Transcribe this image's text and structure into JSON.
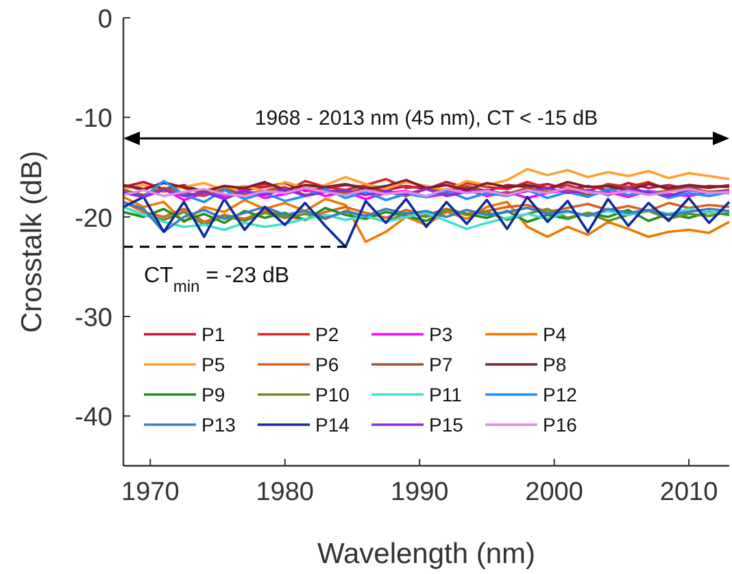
{
  "chart_data": {
    "type": "line",
    "xlabel": "Wavelength (nm)",
    "ylabel": "Crosstalk (dB)",
    "xlim": [
      1968,
      2013
    ],
    "ylim": [
      -45,
      0
    ],
    "xticks": [
      1970,
      1980,
      1990,
      2000,
      2010
    ],
    "yticks": [
      -40,
      -30,
      -20,
      -10,
      0
    ],
    "grid": false,
    "legend": "bottom left",
    "marker": "none",
    "line_style": "solid",
    "x": [
      1968,
      1969.5,
      1971,
      1972.5,
      1974,
      1975.5,
      1977,
      1978.5,
      1980,
      1981.5,
      1983,
      1984.5,
      1986,
      1987.5,
      1989,
      1990.5,
      1992,
      1993.5,
      1995,
      1996.5,
      1998,
      1999.5,
      2001,
      2002.5,
      2004,
      2005.5,
      2007,
      2008.5,
      2010,
      2011.5,
      2013
    ],
    "annotations": [
      "1968 - 2013 nm (45 nm), CT < -15 dB",
      {
        "text": "CT$_{min}$ = -23 dB",
        "x": 1985,
        "y": -23
      }
    ],
    "series": [
      {
        "name": "P1",
        "color": "#c0143c",
        "values": [
          -17,
          -16.5,
          -17.2,
          -16.8,
          -17.5,
          -16.9,
          -17.3,
          -17,
          -16.6,
          -17.4,
          -17.1,
          -16.8,
          -17,
          -17.3,
          -16.9,
          -17.2,
          -16.5,
          -17.1,
          -17.4,
          -16.8,
          -17,
          -16.7,
          -17.2,
          -16.9,
          -17.3,
          -16.6,
          -17.1,
          -16.8,
          -17.2,
          -16.9,
          -17
        ]
      },
      {
        "name": "P2",
        "color": "#d62728",
        "values": [
          -16.8,
          -17.3,
          -16.5,
          -17.1,
          -17.6,
          -16.9,
          -17.2,
          -16.7,
          -17.5,
          -16.4,
          -17,
          -17.3,
          -16.8,
          -16.2,
          -17.1,
          -16.9,
          -17.4,
          -16.6,
          -17,
          -17.2,
          -16.5,
          -17.1,
          -16.8,
          -17.4,
          -16.7,
          -17,
          -16.5,
          -17.3,
          -16.9,
          -17.1,
          -16.8
        ]
      },
      {
        "name": "P3",
        "color": "#ff00ff",
        "values": [
          -17.5,
          -18,
          -17.2,
          -18.3,
          -17.6,
          -17.9,
          -17.3,
          -18.1,
          -17.7,
          -17.2,
          -17.9,
          -17.5,
          -18.2,
          -17.6,
          -17.4,
          -18,
          -17.7,
          -17.3,
          -17.9,
          -17.5,
          -18.1,
          -17.6,
          -17.3,
          -17.8,
          -17.5,
          -18,
          -17.4,
          -17.7,
          -17.9,
          -17.5,
          -17.6
        ]
      },
      {
        "name": "P4",
        "color": "#f07800",
        "values": [
          -18,
          -19,
          -18.5,
          -20.5,
          -19,
          -19.5,
          -18.3,
          -19.2,
          -18.6,
          -19.4,
          -18.2,
          -18.8,
          -22.5,
          -21.5,
          -20,
          -20.8,
          -19.5,
          -20.2,
          -19,
          -18.5,
          -21,
          -22,
          -21,
          -21.8,
          -20.5,
          -21.2,
          -22,
          -21.5,
          -21.3,
          -21.6,
          -20.5
        ]
      },
      {
        "name": "P5",
        "color": "#ffa030",
        "values": [
          -17.2,
          -16.8,
          -17.5,
          -17,
          -16.6,
          -17.3,
          -16.9,
          -17.4,
          -16.5,
          -17.1,
          -16.8,
          -16,
          -16.7,
          -17.2,
          -16.5,
          -16.9,
          -17.3,
          -16.4,
          -16.8,
          -16.3,
          -15.2,
          -15.8,
          -15.3,
          -16,
          -15.5,
          -15.9,
          -15.4,
          -16.1,
          -15.6,
          -15.9,
          -16.2
        ]
      },
      {
        "name": "P6",
        "color": "#e06020",
        "values": [
          -18.5,
          -19.5,
          -20,
          -19.2,
          -20.5,
          -19.8,
          -20.2,
          -19.4,
          -19.9,
          -20.3,
          -19.5,
          -19,
          -19.6,
          -20.1,
          -19.3,
          -19.8,
          -19.2,
          -19.7,
          -19.4,
          -19,
          -18.8,
          -19.5,
          -19.1,
          -18.7,
          -19.3,
          -18.9,
          -19.4,
          -18.6,
          -19.1,
          -18.8,
          -19
        ]
      },
      {
        "name": "P7",
        "color": "#a0522d",
        "values": [
          -17.3,
          -17.8,
          -17.1,
          -17.6,
          -17.9,
          -17.2,
          -17.7,
          -17.4,
          -17,
          -17.8,
          -17.3,
          -17.6,
          -17.1,
          -17.5,
          -17.9,
          -17.2,
          -17.6,
          -16.9,
          -17.4,
          -17.7,
          -17.1,
          -17.5,
          -17.2,
          -17.8,
          -17.3,
          -17,
          -17.6,
          -17.4,
          -17.1,
          -17.5,
          -17.3
        ]
      },
      {
        "name": "P8",
        "color": "#7b1e2e",
        "values": [
          -16.8,
          -17.2,
          -16.6,
          -17,
          -17.4,
          -16.9,
          -17.1,
          -16.5,
          -17.3,
          -16.8,
          -17,
          -16.7,
          -17.2,
          -16.9,
          -16.3,
          -17.1,
          -16.8,
          -17.3,
          -16.6,
          -17,
          -16.8,
          -17.2,
          -16.5,
          -17,
          -16.9,
          -17.3,
          -16.7,
          -17.1,
          -16.8,
          -17,
          -16.9
        ]
      },
      {
        "name": "P9",
        "color": "#1f8f1f",
        "values": [
          -19.5,
          -20,
          -19.2,
          -20.4,
          -19.7,
          -20.6,
          -19.4,
          -20.1,
          -19.6,
          -20.3,
          -19.1,
          -19.8,
          -20.2,
          -19.5,
          -19.9,
          -20.4,
          -19.3,
          -19.7,
          -20.1,
          -19.4,
          -20.5,
          -19.8,
          -20.2,
          -19.6,
          -20,
          -19.3,
          -20.4,
          -19.7,
          -20.1,
          -19.5,
          -19.8
        ]
      },
      {
        "name": "P10",
        "color": "#6b8e23",
        "values": [
          -19,
          -19.8,
          -20.3,
          -19.5,
          -20.8,
          -19.9,
          -20.4,
          -19.6,
          -20.1,
          -19.7,
          -20.2,
          -19.4,
          -19.9,
          -20.5,
          -19.6,
          -20,
          -19.3,
          -19.8,
          -19.5,
          -20.3,
          -19.7,
          -19.2,
          -20.1,
          -19.6,
          -20.4,
          -19.8,
          -19.4,
          -20.2,
          -19.7,
          -19.9,
          -19.5
        ]
      },
      {
        "name": "P11",
        "color": "#40e0d0",
        "values": [
          -19,
          -19.8,
          -20.5,
          -21,
          -20.8,
          -21.3,
          -20.6,
          -21,
          -20.7,
          -20.2,
          -19.8,
          -20.3,
          -19.9,
          -20.5,
          -20,
          -19.6,
          -20.4,
          -21.2,
          -20.6,
          -20.1,
          -19.7,
          -20.2,
          -19.5,
          -19.9,
          -19.4,
          -19.8,
          -19.3,
          -19.7,
          -19.2,
          -19.6,
          -19.4
        ]
      },
      {
        "name": "P12",
        "color": "#1e90ff",
        "values": [
          -17.5,
          -18,
          -16.4,
          -17.8,
          -18.5,
          -17.3,
          -18.2,
          -17.6,
          -18.4,
          -17.9,
          -17.2,
          -18.1,
          -17.5,
          -18.3,
          -17.7,
          -18,
          -17.4,
          -18.2,
          -17.6,
          -17.9,
          -17.3,
          -18.1,
          -17.5,
          -18,
          -17.2,
          -17.8,
          -17.4,
          -18.1,
          -17.6,
          -17.9,
          -17.5
        ]
      },
      {
        "name": "P13",
        "color": "#3a7fbf",
        "values": [
          -18.5,
          -19.2,
          -21.5,
          -20,
          -19.3,
          -20.2,
          -19.6,
          -19,
          -19.8,
          -19.4,
          -20.1,
          -19.5,
          -19.9,
          -19.2,
          -19.7,
          -19.4,
          -20,
          -19.3,
          -19.8,
          -19.5,
          -19.1,
          -19.7,
          -19.4,
          -19.9,
          -19.2,
          -19.6,
          -19.3,
          -19.8,
          -19.5,
          -19.2,
          -19.4
        ]
      },
      {
        "name": "P14",
        "color": "#0b2a9c",
        "values": [
          -19,
          -18,
          -21.5,
          -18.5,
          -22,
          -18.2,
          -21.3,
          -19,
          -20.8,
          -18.6,
          -20.9,
          -23,
          -18.4,
          -20.6,
          -18.2,
          -21,
          -18.5,
          -20.7,
          -18.3,
          -21.2,
          -18,
          -20.5,
          -18.4,
          -21.5,
          -18.2,
          -20.9,
          -18.6,
          -20.4,
          -18.1,
          -20.6,
          -18.5
        ]
      },
      {
        "name": "P15",
        "color": "#8a2be2",
        "values": [
          -17.6,
          -18,
          -17.3,
          -17.9,
          -17.5,
          -18.2,
          -17.4,
          -17.8,
          -17.2,
          -17.9,
          -17.5,
          -17.3,
          -17.8,
          -17.4,
          -17.7,
          -17.2,
          -17.9,
          -17.5,
          -17.3,
          -17.8,
          -17.4,
          -17.1,
          -17.6,
          -17.3,
          -17.8,
          -17.2,
          -17.5,
          -17.9,
          -17.3,
          -17.6,
          -17.4
        ]
      },
      {
        "name": "P16",
        "color": "#e08ce0",
        "values": [
          -17.8,
          -17.3,
          -17.9,
          -17.5,
          -17.2,
          -17.7,
          -17.9,
          -17.4,
          -17.6,
          -17.1,
          -17.5,
          -17.8,
          -17.3,
          -17.7,
          -17.5,
          -17.9,
          -17.2,
          -17.6,
          -17.4,
          -17.8,
          -17.3,
          -17.6,
          -17.1,
          -17.5,
          -17.7,
          -17.4,
          -17.8,
          -17.5,
          -17.2,
          -17.6,
          -17.5
        ]
      }
    ]
  }
}
